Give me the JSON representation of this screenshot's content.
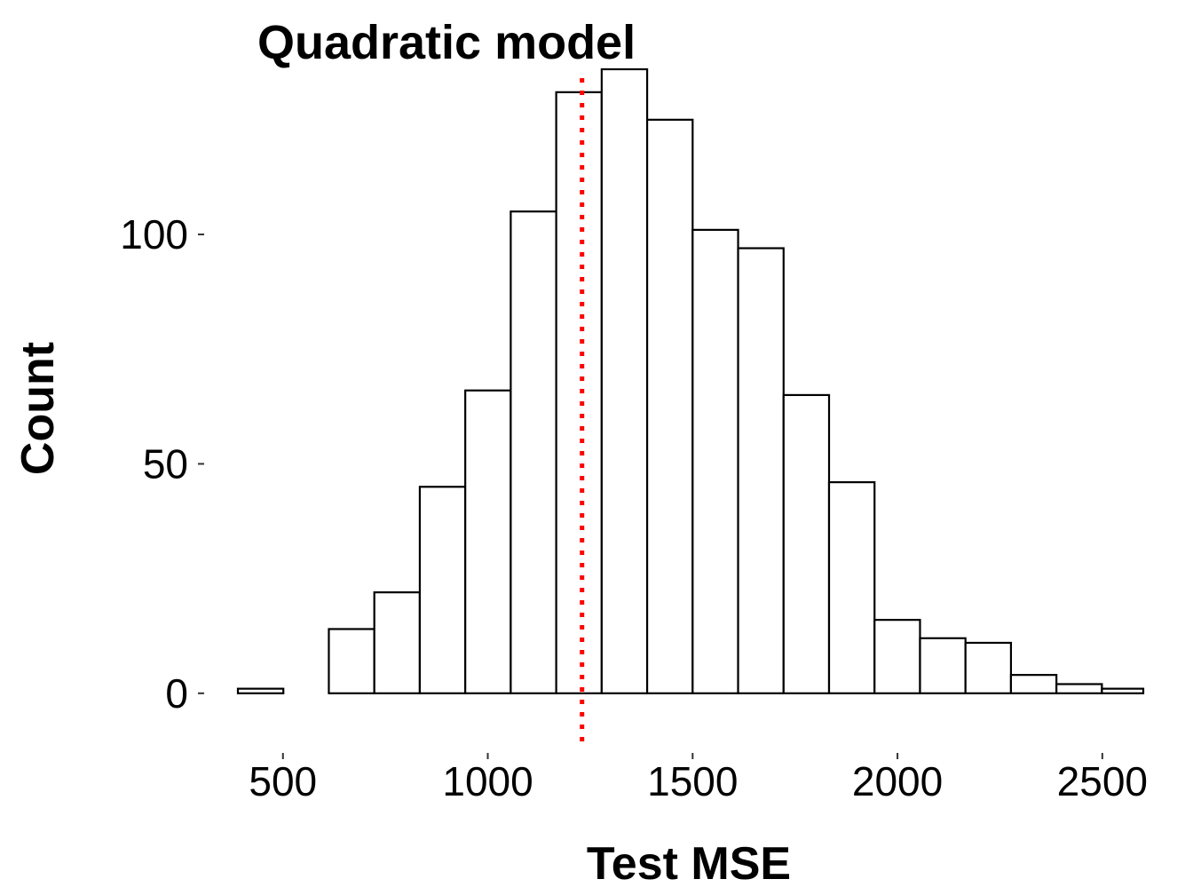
{
  "chart_data": {
    "type": "bar",
    "subtype": "histogram",
    "title": "Quadratic model",
    "xlabel": "Test MSE",
    "ylabel": "Count",
    "xlim": [
      390,
      2600
    ],
    "ylim": [
      -13,
      136
    ],
    "x_ticks": [
      500,
      1000,
      1500,
      2000,
      2500
    ],
    "y_ticks": [
      0,
      50,
      100
    ],
    "grid": false,
    "bins": [
      {
        "x0": 390,
        "x1": 501,
        "count": 1
      },
      {
        "x0": 501,
        "x1": 612,
        "count": 0
      },
      {
        "x0": 612,
        "x1": 723,
        "count": 14
      },
      {
        "x0": 723,
        "x1": 834,
        "count": 22
      },
      {
        "x0": 834,
        "x1": 945,
        "count": 45
      },
      {
        "x0": 945,
        "x1": 1056,
        "count": 66
      },
      {
        "x0": 1056,
        "x1": 1167,
        "count": 105
      },
      {
        "x0": 1167,
        "x1": 1278,
        "count": 131
      },
      {
        "x0": 1278,
        "x1": 1389,
        "count": 136
      },
      {
        "x0": 1389,
        "x1": 1500,
        "count": 125
      },
      {
        "x0": 1500,
        "x1": 1611,
        "count": 101
      },
      {
        "x0": 1611,
        "x1": 1722,
        "count": 97
      },
      {
        "x0": 1722,
        "x1": 1833,
        "count": 65
      },
      {
        "x0": 1833,
        "x1": 1944,
        "count": 46
      },
      {
        "x0": 1944,
        "x1": 2055,
        "count": 16
      },
      {
        "x0": 2055,
        "x1": 2166,
        "count": 12
      },
      {
        "x0": 2166,
        "x1": 2277,
        "count": 11
      },
      {
        "x0": 2277,
        "x1": 2388,
        "count": 4
      },
      {
        "x0": 2388,
        "x1": 2499,
        "count": 2
      },
      {
        "x0": 2499,
        "x1": 2600,
        "count": 1
      }
    ],
    "reference_line": {
      "x": 1230,
      "color": "#ff0000",
      "style": "dotted"
    }
  }
}
